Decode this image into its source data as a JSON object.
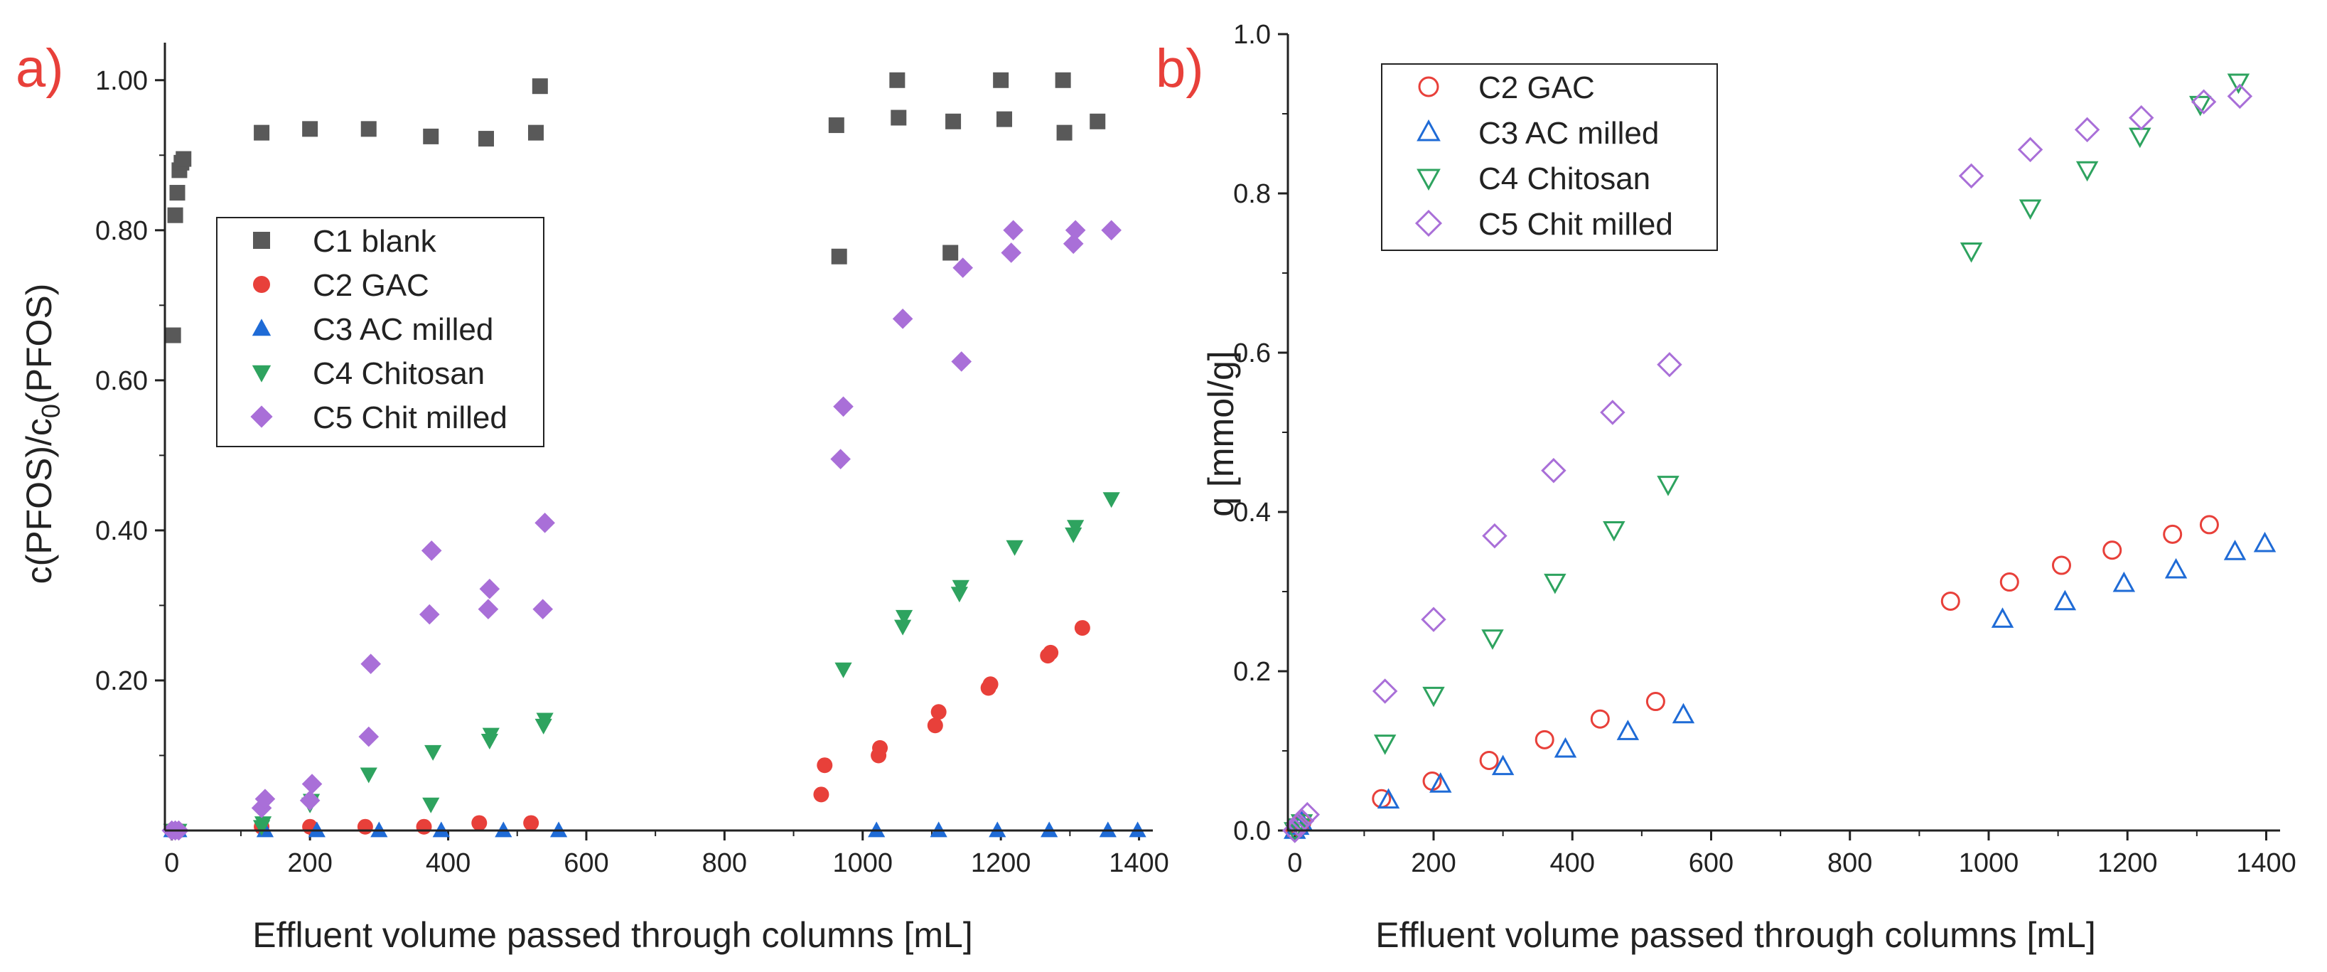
{
  "colors": {
    "C1": "#595959",
    "C2": "#e8403a",
    "C3": "#1f6bd6",
    "C4": "#2ea35f",
    "C5": "#a96fd8",
    "axis": "#222222",
    "panel_label": "#e8403a"
  },
  "chart_data": [
    {
      "panel": "a)",
      "type": "scatter",
      "xlabel": "Effluent volume passed through columns [mL]",
      "ylabel_prefix": "c(PFOS)/c",
      "ylabel_sub": "0",
      "ylabel_suffix": "(PFOS)",
      "xlim": [
        -10,
        1420
      ],
      "ylim": [
        0,
        1.05
      ],
      "xticks": [
        0,
        200,
        400,
        600,
        800,
        1000,
        1200,
        1400
      ],
      "xtick_labels": [
        "0",
        "200",
        "400",
        "600",
        "800",
        "1000",
        "1200",
        "1400"
      ],
      "yticks": [
        0.2,
        0.4,
        0.6,
        0.8,
        1.0
      ],
      "ytick_labels": [
        "0.20",
        "0.40",
        "0.60",
        "0.80",
        "1.00"
      ],
      "legend_position": "center-left",
      "series": [
        {
          "key": "C1",
          "name": "C1 blank",
          "marker": "square",
          "filled": true,
          "x": [
            2,
            5,
            8,
            11,
            14,
            17,
            130,
            200,
            285,
            375,
            455,
            527,
            533,
            962,
            966,
            1050,
            1052,
            1127,
            1131,
            1200,
            1205,
            1290,
            1292,
            1340
          ],
          "y": [
            0.66,
            0.82,
            0.85,
            0.88,
            0.89,
            0.895,
            0.93,
            0.935,
            0.935,
            0.925,
            0.922,
            0.93,
            0.992,
            0.94,
            0.765,
            1.0,
            0.95,
            0.77,
            0.945,
            1.0,
            0.948,
            1.0,
            0.93,
            0.945
          ]
        },
        {
          "key": "C2",
          "name": "C2 GAC",
          "marker": "circle",
          "filled": true,
          "x": [
            0,
            5,
            10,
            130,
            200,
            280,
            365,
            445,
            520,
            940,
            945,
            1023,
            1025,
            1105,
            1110,
            1182,
            1185,
            1268,
            1272,
            1318
          ],
          "y": [
            0,
            0,
            0,
            0.005,
            0.005,
            0.005,
            0.005,
            0.01,
            0.01,
            0.048,
            0.087,
            0.1,
            0.11,
            0.14,
            0.158,
            0.19,
            0.195,
            0.233,
            0.237,
            0.27
          ]
        },
        {
          "key": "C3",
          "name": "C3 AC milled",
          "marker": "triangle-up",
          "filled": true,
          "x": [
            0,
            5,
            10,
            135,
            210,
            300,
            390,
            480,
            560,
            1020,
            1110,
            1195,
            1270,
            1355,
            1398
          ],
          "y": [
            0,
            0,
            0,
            0,
            0,
            0,
            0,
            0,
            0,
            0,
            0,
            0,
            0,
            0,
            0
          ]
        },
        {
          "key": "C4",
          "name": "C4 Chitosan",
          "marker": "triangle-down",
          "filled": true,
          "x": [
            0,
            5,
            10,
            130,
            132,
            200,
            202,
            285,
            375,
            378,
            460,
            462,
            538,
            540,
            972,
            1058,
            1060,
            1140,
            1142,
            1220,
            1305,
            1308,
            1360
          ],
          "y": [
            0,
            0,
            0,
            0.005,
            0.01,
            0.035,
            0.04,
            0.075,
            0.035,
            0.105,
            0.12,
            0.128,
            0.14,
            0.148,
            0.215,
            0.272,
            0.285,
            0.316,
            0.325,
            0.378,
            0.395,
            0.405,
            0.442
          ]
        },
        {
          "key": "C5",
          "name": "C5 Chit milled",
          "marker": "diamond",
          "filled": true,
          "x": [
            0,
            5,
            10,
            130,
            135,
            200,
            203,
            285,
            288,
            373,
            376,
            458,
            460,
            537,
            540,
            968,
            972,
            1058,
            1143,
            1145,
            1215,
            1218,
            1305,
            1308,
            1360
          ],
          "y": [
            0,
            0,
            0,
            0.03,
            0.042,
            0.04,
            0.062,
            0.125,
            0.222,
            0.288,
            0.373,
            0.295,
            0.322,
            0.295,
            0.41,
            0.495,
            0.565,
            0.682,
            0.625,
            0.75,
            0.77,
            0.8,
            0.782,
            0.8,
            0.8
          ]
        }
      ]
    },
    {
      "panel": "b)",
      "type": "scatter",
      "xlabel": "Effluent volume passed through columns [mL]",
      "ylabel": "q [mmol/g]",
      "xlim": [
        -10,
        1420
      ],
      "ylim": [
        0,
        1.0
      ],
      "xticks": [
        0,
        200,
        400,
        600,
        800,
        1000,
        1200,
        1400
      ],
      "xtick_labels": [
        "0",
        "200",
        "400",
        "600",
        "800",
        "1000",
        "1200",
        "1400"
      ],
      "yticks": [
        0,
        0.2,
        0.4,
        0.6,
        0.8,
        1.0
      ],
      "ytick_labels": [
        "0.0",
        "0.2",
        "0.4",
        "0.6",
        "0.8",
        "1.0"
      ],
      "legend_position": "top-left",
      "series": [
        {
          "key": "C2",
          "name": "C2 GAC",
          "marker": "circle",
          "filled": false,
          "x": [
            0,
            5,
            10,
            125,
            198,
            280,
            360,
            440,
            520,
            945,
            1030,
            1105,
            1178,
            1265,
            1318
          ],
          "y": [
            0,
            0.005,
            0.01,
            0.04,
            0.062,
            0.088,
            0.114,
            0.14,
            0.162,
            0.288,
            0.312,
            0.333,
            0.352,
            0.372,
            0.384
          ]
        },
        {
          "key": "C3",
          "name": "C3 AC milled",
          "marker": "triangle-up",
          "filled": false,
          "x": [
            0,
            5,
            10,
            135,
            210,
            300,
            390,
            480,
            560,
            1020,
            1110,
            1195,
            1270,
            1355,
            1398
          ],
          "y": [
            0,
            0.005,
            0.01,
            0.038,
            0.058,
            0.08,
            0.102,
            0.124,
            0.145,
            0.265,
            0.287,
            0.31,
            0.327,
            0.35,
            0.36
          ]
        },
        {
          "key": "C4",
          "name": "C4 Chitosan",
          "marker": "triangle-down",
          "filled": false,
          "x": [
            0,
            5,
            10,
            130,
            200,
            285,
            375,
            460,
            538,
            975,
            1060,
            1142,
            1218,
            1305,
            1360
          ],
          "y": [
            0,
            0.005,
            0.01,
            0.11,
            0.17,
            0.242,
            0.312,
            0.378,
            0.435,
            0.728,
            0.782,
            0.83,
            0.872,
            0.912,
            0.94
          ]
        },
        {
          "key": "C5",
          "name": "C5 Chit milled",
          "marker": "diamond",
          "filled": false,
          "x": [
            0,
            5,
            10,
            18,
            130,
            200,
            288,
            373,
            458,
            540,
            975,
            1060,
            1142,
            1220,
            1310,
            1362
          ],
          "y": [
            0,
            0.008,
            0.012,
            0.02,
            0.175,
            0.265,
            0.37,
            0.452,
            0.525,
            0.585,
            0.822,
            0.855,
            0.88,
            0.895,
            0.915,
            0.922
          ]
        }
      ]
    }
  ]
}
